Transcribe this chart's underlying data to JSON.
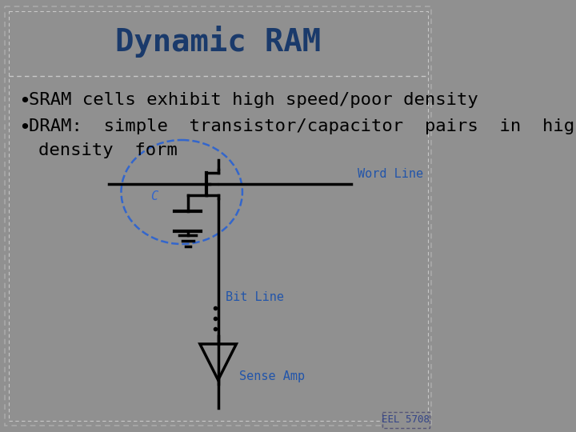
{
  "title": "Dynamic RAM",
  "title_color": "#1a3a6b",
  "title_fontsize": 28,
  "bg_color": "#909090",
  "inner_bg_color": "#909090",
  "border_color": "#b0b0b0",
  "bullet1": "SRAM cells exhibit high speed/poor density",
  "bullet2": "DRAM:  simple  transistor/capacitor  pairs  in  high\n   density form",
  "bullet_fontsize": 16,
  "bullet_color": "#000000",
  "text_color_blue": "#2255aa",
  "circuit_color": "#000000",
  "dashed_ellipse_color": "#3366cc",
  "label_color": "#2255aa",
  "label_fontsize": 11,
  "label_c_fontsize": 11,
  "watermark": "EEL 5708",
  "watermark_fontsize": 9,
  "outer_border_color": "#aaaaaa",
  "inner_border_color": "#c8c8c8"
}
